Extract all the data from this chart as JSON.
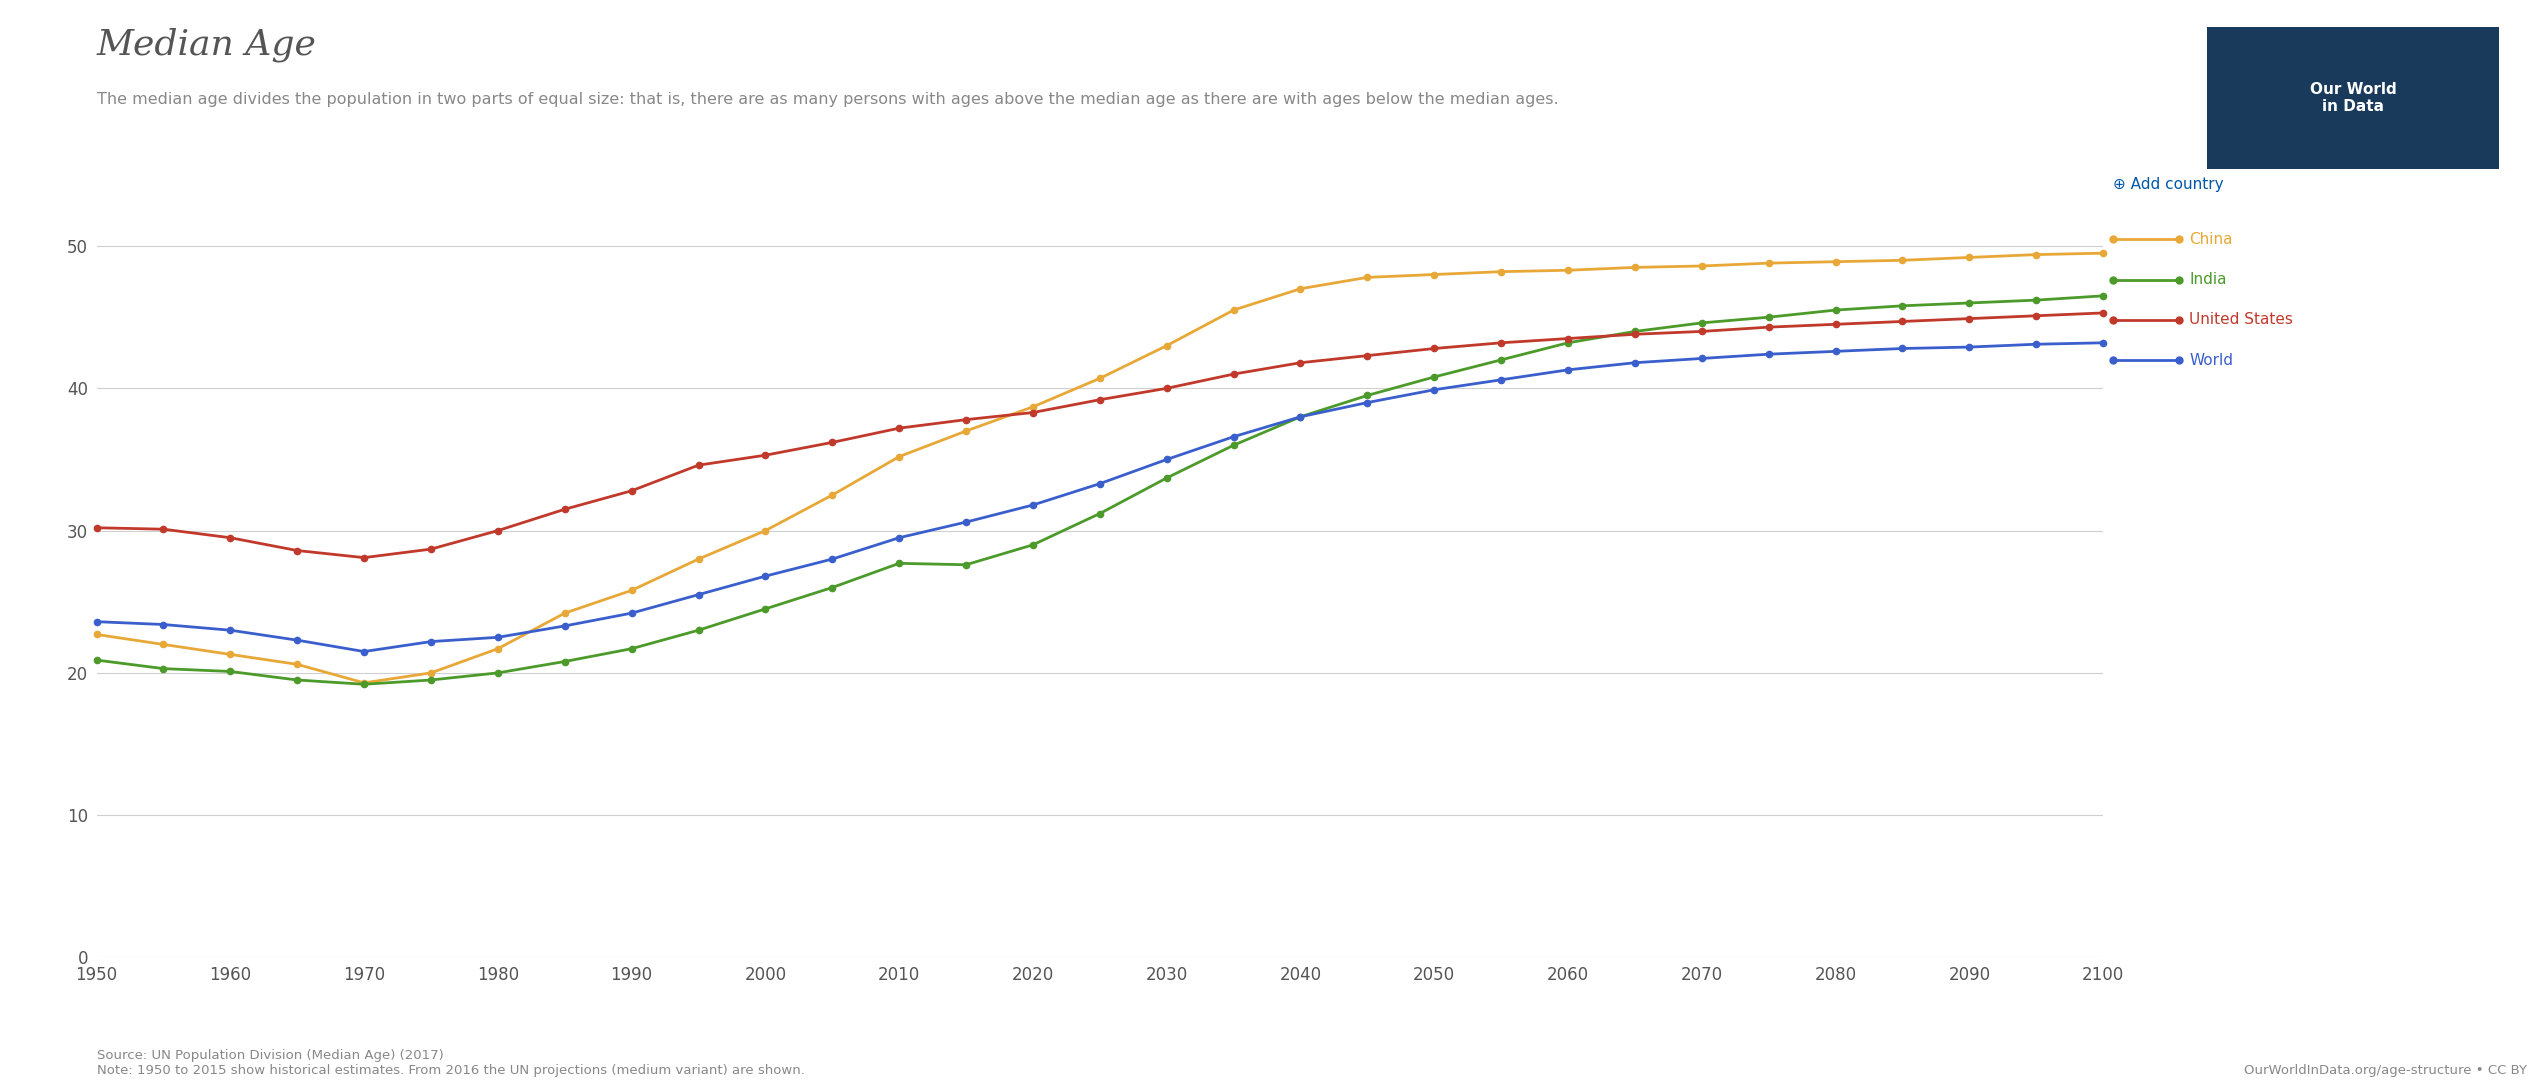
{
  "title": "Median Age",
  "subtitle": "The median age divides the population in two parts of equal size: that is, there are as many persons with ages above the median age as there are with ages below the median ages.",
  "source_left": "Source: UN Population Division (Median Age) (2017)\nNote: 1950 to 2015 show historical estimates. From 2016 the UN projections (medium variant) are shown.",
  "source_right": "OurWorldInData.org/age-structure • CC BY",
  "ylim": [
    0,
    52
  ],
  "yticks": [
    0,
    10,
    20,
    30,
    40,
    50
  ],
  "xlim": [
    1950,
    2100
  ],
  "xticks": [
    1950,
    1960,
    1970,
    1980,
    1990,
    2000,
    2010,
    2020,
    2030,
    2040,
    2050,
    2060,
    2070,
    2080,
    2090,
    2100
  ],
  "background_color": "#ffffff",
  "grid_color": "#d0d0d0",
  "series": [
    {
      "label": "China",
      "color": "#e8a838",
      "years": [
        1950,
        1955,
        1960,
        1965,
        1970,
        1975,
        1980,
        1985,
        1990,
        1995,
        2000,
        2005,
        2010,
        2015,
        2020,
        2025,
        2030,
        2035,
        2040,
        2045,
        2050,
        2055,
        2060,
        2065,
        2070,
        2075,
        2080,
        2085,
        2090,
        2095,
        2100
      ],
      "values": [
        22.7,
        22.0,
        21.3,
        20.6,
        19.3,
        20.0,
        21.7,
        24.2,
        25.8,
        28.0,
        30.0,
        32.5,
        35.2,
        37.0,
        38.7,
        40.7,
        43.0,
        45.5,
        47.0,
        47.8,
        48.0,
        48.2,
        48.3,
        48.5,
        48.6,
        48.8,
        48.9,
        49.0,
        49.2,
        49.4,
        49.5
      ]
    },
    {
      "label": "India",
      "color": "#4c9a2a",
      "years": [
        1950,
        1955,
        1960,
        1965,
        1970,
        1975,
        1980,
        1985,
        1990,
        1995,
        2000,
        2005,
        2010,
        2015,
        2020,
        2025,
        2030,
        2035,
        2040,
        2045,
        2050,
        2055,
        2060,
        2065,
        2070,
        2075,
        2080,
        2085,
        2090,
        2095,
        2100
      ],
      "values": [
        20.9,
        20.3,
        20.1,
        19.5,
        19.2,
        19.5,
        20.0,
        20.8,
        21.7,
        23.0,
        24.5,
        26.0,
        27.7,
        27.6,
        29.0,
        31.2,
        33.7,
        36.0,
        38.0,
        39.5,
        40.8,
        42.0,
        43.2,
        44.0,
        44.6,
        45.0,
        45.5,
        45.8,
        46.0,
        46.2,
        46.5
      ]
    },
    {
      "label": "United States",
      "color": "#c0392b",
      "years": [
        1950,
        1955,
        1960,
        1965,
        1970,
        1975,
        1980,
        1985,
        1990,
        1995,
        2000,
        2005,
        2010,
        2015,
        2020,
        2025,
        2030,
        2035,
        2040,
        2045,
        2050,
        2055,
        2060,
        2065,
        2070,
        2075,
        2080,
        2085,
        2090,
        2095,
        2100
      ],
      "values": [
        30.2,
        30.1,
        29.5,
        28.6,
        28.1,
        28.7,
        30.0,
        31.5,
        32.8,
        34.6,
        35.3,
        36.2,
        37.2,
        37.8,
        38.3,
        39.2,
        40.0,
        41.0,
        41.8,
        42.3,
        42.8,
        43.2,
        43.5,
        43.8,
        44.0,
        44.3,
        44.5,
        44.7,
        44.9,
        45.1,
        45.3
      ]
    },
    {
      "label": "World",
      "color": "#3a5fcd",
      "years": [
        1950,
        1955,
        1960,
        1965,
        1970,
        1975,
        1980,
        1985,
        1990,
        1995,
        2000,
        2005,
        2010,
        2015,
        2020,
        2025,
        2030,
        2035,
        2040,
        2045,
        2050,
        2055,
        2060,
        2065,
        2070,
        2075,
        2080,
        2085,
        2090,
        2095,
        2100
      ],
      "values": [
        23.6,
        23.4,
        23.0,
        22.3,
        21.5,
        22.2,
        22.5,
        23.3,
        24.2,
        25.5,
        26.8,
        28.0,
        29.5,
        30.6,
        31.8,
        33.3,
        35.0,
        36.6,
        38.0,
        39.0,
        39.9,
        40.6,
        41.3,
        41.8,
        42.1,
        42.4,
        42.6,
        42.8,
        42.9,
        43.1,
        43.2
      ]
    }
  ],
  "add_country_color": "#0057a8",
  "owid_box_color": "#1a3a5c",
  "title_fontsize": 26,
  "subtitle_fontsize": 11.5,
  "axis_fontsize": 12,
  "source_fontsize": 9.5,
  "legend_fontsize": 11,
  "owid_fontsize": 11
}
